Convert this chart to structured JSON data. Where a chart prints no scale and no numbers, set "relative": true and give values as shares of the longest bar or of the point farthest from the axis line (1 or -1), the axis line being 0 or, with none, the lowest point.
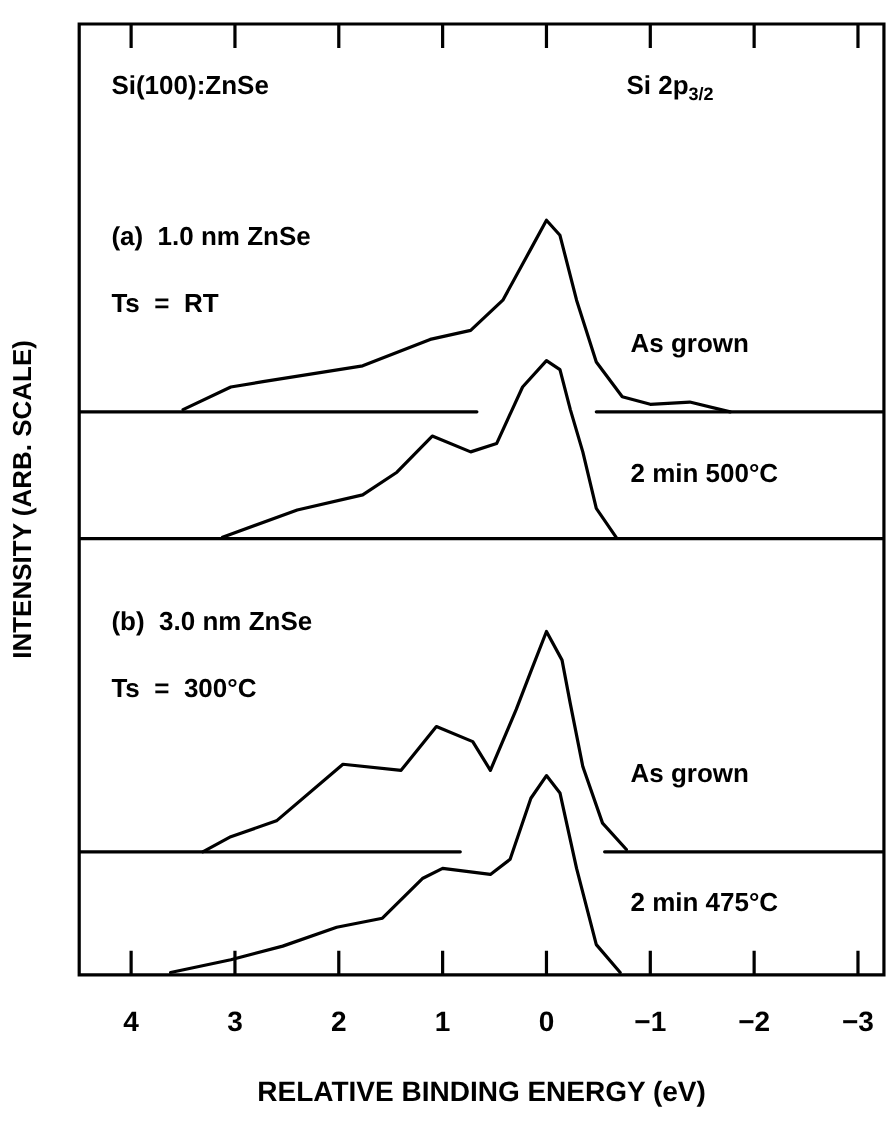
{
  "chart_data": {
    "type": "line",
    "relative": true,
    "xlabel": "RELATIVE BINDING ENERGY (eV)",
    "ylabel": "INTENSITY (ARB. SCALE)",
    "annotations": [
      "Si(100):ZnSe",
      "Si 2p$_{3/2}$",
      "(a)  1.0 nm ZnSe",
      "Ts  =  RT",
      "(b)  3.0 nm ZnSe",
      "Ts  =  300°C"
    ],
    "xlim": [
      4.5,
      -3.25
    ],
    "xticks": [
      4,
      3,
      2,
      1,
      {
        "value": 0,
        "label": "0"
      },
      -1,
      -2,
      -3
    ],
    "marker": "none",
    "line_style": "solid",
    "series": [
      {
        "name": "As grown",
        "color": "#000000",
        "x": [
          3.5,
          3.04,
          2.73,
          1.77,
          1.12,
          0.73,
          0.42,
          0.15,
          0,
          -0.13,
          -0.29,
          -0.48,
          -0.73,
          -1,
          -1.38,
          -1.77
        ],
        "values": [
          0.749,
          0.779,
          0.786,
          0.807,
          0.842,
          0.854,
          0.894,
          0.962,
          1,
          0.98,
          0.894,
          0.812,
          0.766,
          0.756,
          0.759,
          0.746
        ]
      },
      {
        "name": "2 min 500°C",
        "color": "#000000",
        "x": [
          3.12,
          2.4,
          1.77,
          1.44,
          1.1,
          0.73,
          0.48,
          0.23,
          0,
          -0.13,
          -0.23,
          -0.35,
          -0.48,
          -0.67
        ],
        "values": [
          0.58,
          0.616,
          0.636,
          0.666,
          0.714,
          0.693,
          0.704,
          0.779,
          0.814,
          0.802,
          0.749,
          0.693,
          0.618,
          0.58
        ]
      },
      {
        "name": "As grown",
        "color": "#000000",
        "x": [
          3.31,
          3.04,
          2.6,
          1.96,
          1.4,
          1.06,
          0.71,
          0.54,
          0.29,
          0.15,
          0,
          -0.15,
          -0.23,
          -0.35,
          -0.54,
          -0.77
        ],
        "values": [
          0.163,
          0.183,
          0.204,
          0.279,
          0.271,
          0.329,
          0.309,
          0.271,
          0.352,
          0.402,
          0.455,
          0.417,
          0.359,
          0.276,
          0.201,
          0.166
        ]
      },
      {
        "name": "2 min 475°C",
        "color": "#000000",
        "x": [
          3.62,
          3.04,
          2.54,
          2.02,
          1.58,
          1.19,
          1,
          0.54,
          0.35,
          0.15,
          0,
          -0.13,
          -0.29,
          -0.48,
          -0.71
        ],
        "values": [
          0.003,
          0.02,
          0.038,
          0.063,
          0.075,
          0.128,
          0.141,
          0.133,
          0.153,
          0.234,
          0.264,
          0.241,
          0.141,
          0.04,
          0.003
        ]
      },
      {
        "color": "#000000",
        "x": [
          4.5,
          0.67,
          0.3,
          -0.48,
          -3.25
        ],
        "values": [
          0.746,
          0.746,
          null,
          0.746,
          0.746
        ]
      },
      {
        "color": "#000000",
        "x": [
          4.5,
          -3.25
        ],
        "values": [
          0.578,
          0.578
        ]
      },
      {
        "color": "#000000",
        "x": [
          4.5,
          0.83,
          0.3,
          -0.56,
          -3.25
        ],
        "values": [
          0.163,
          0.163,
          null,
          0.163,
          0.163
        ]
      }
    ]
  }
}
